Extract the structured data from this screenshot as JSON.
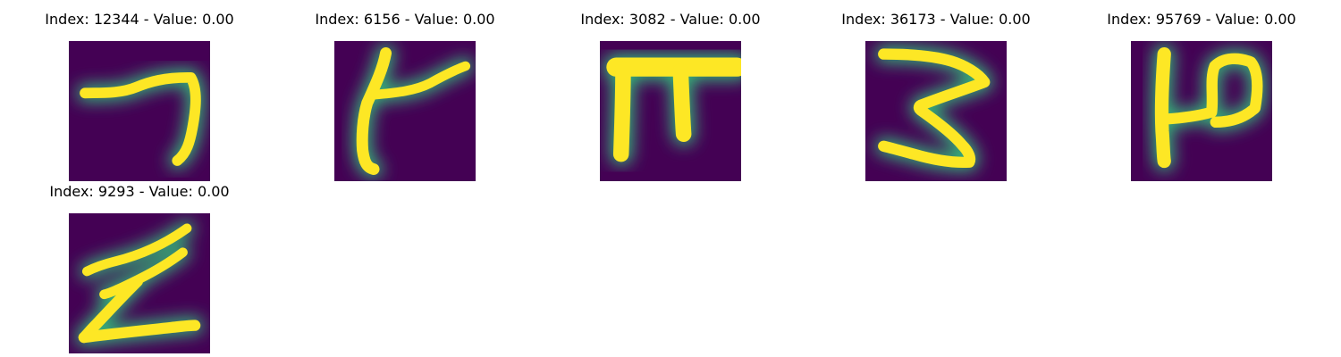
{
  "colors": {
    "background": "#440154",
    "stroke_core": "#fde725",
    "stroke_edge": "#35b779",
    "stroke_mid": "#21918c"
  },
  "panels": [
    {
      "title": "Index: 12344 - Value: 0.00",
      "glyph": "seven-like-stroke"
    },
    {
      "title": "Index: 6156 - Value: 0.00",
      "glyph": "k-like-stroke"
    },
    {
      "title": "Index: 3082 - Value: 0.00",
      "glyph": "pi-like-stroke"
    },
    {
      "title": "Index: 36173 - Value: 0.00",
      "glyph": "three-like-stroke"
    },
    {
      "title": "Index: 95769 - Value: 0.00",
      "glyph": "p-like-stroke"
    },
    {
      "title": "Index: 9293 - Value: 0.00",
      "glyph": "z-like-stroke"
    }
  ]
}
